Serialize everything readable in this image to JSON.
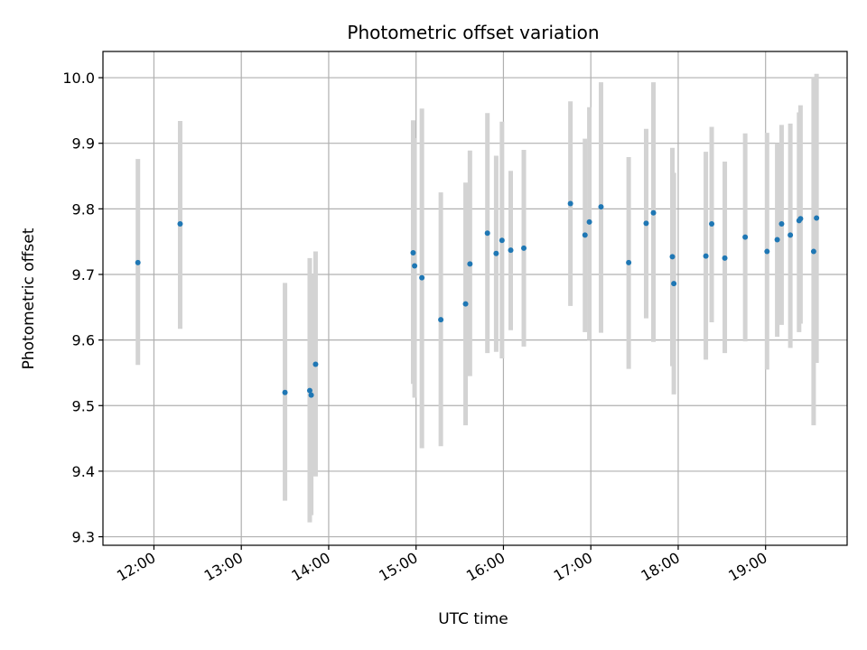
{
  "chart_data": {
    "type": "scatter",
    "title": "Photometric offset variation",
    "xlabel": "UTC time",
    "ylabel": "Photometric offset",
    "x_ticks": [
      "12:00",
      "13:00",
      "14:00",
      "15:00",
      "16:00",
      "17:00",
      "18:00",
      "19:00"
    ],
    "y_ticks": [
      "9.3",
      "9.4",
      "9.5",
      "9.6",
      "9.7",
      "9.8",
      "9.9",
      "10.0"
    ],
    "xlim": [
      "11:25",
      "19:56"
    ],
    "ylim": [
      9.287,
      10.04
    ],
    "grid": true,
    "colors": {
      "marker": "#1f77b4",
      "errorbar": "#d3d3d3",
      "grid": "#b0b0b0"
    },
    "points": [
      {
        "x": "11:49",
        "y": 9.718,
        "ylow": 9.562,
        "yhigh": 9.876
      },
      {
        "x": "12:18",
        "y": 9.777,
        "ylow": 9.617,
        "yhigh": 9.934
      },
      {
        "x": "13:30",
        "y": 9.52,
        "ylow": 9.355,
        "yhigh": 9.687
      },
      {
        "x": "13:47",
        "y": 9.523,
        "ylow": 9.322,
        "yhigh": 9.725
      },
      {
        "x": "13:48",
        "y": 9.516,
        "ylow": 9.333,
        "yhigh": 9.7
      },
      {
        "x": "13:51",
        "y": 9.563,
        "ylow": 9.392,
        "yhigh": 9.735
      },
      {
        "x": "14:58",
        "y": 9.733,
        "ylow": 9.533,
        "yhigh": 9.935
      },
      {
        "x": "14:59",
        "y": 9.713,
        "ylow": 9.512,
        "yhigh": 9.908
      },
      {
        "x": "15:04",
        "y": 9.695,
        "ylow": 9.435,
        "yhigh": 9.953
      },
      {
        "x": "15:17",
        "y": 9.631,
        "ylow": 9.438,
        "yhigh": 9.825
      },
      {
        "x": "15:34",
        "y": 9.655,
        "ylow": 9.47,
        "yhigh": 9.84
      },
      {
        "x": "15:37",
        "y": 9.716,
        "ylow": 9.545,
        "yhigh": 9.889
      },
      {
        "x": "15:49",
        "y": 9.763,
        "ylow": 9.58,
        "yhigh": 9.946
      },
      {
        "x": "15:55",
        "y": 9.732,
        "ylow": 9.582,
        "yhigh": 9.881
      },
      {
        "x": "15:59",
        "y": 9.752,
        "ylow": 9.572,
        "yhigh": 9.933
      },
      {
        "x": "16:05",
        "y": 9.737,
        "ylow": 9.615,
        "yhigh": 9.858
      },
      {
        "x": "16:14",
        "y": 9.74,
        "ylow": 9.59,
        "yhigh": 9.89
      },
      {
        "x": "16:46",
        "y": 9.808,
        "ylow": 9.652,
        "yhigh": 9.964
      },
      {
        "x": "16:56",
        "y": 9.76,
        "ylow": 9.612,
        "yhigh": 9.907
      },
      {
        "x": "16:59",
        "y": 9.78,
        "ylow": 9.6,
        "yhigh": 9.955
      },
      {
        "x": "17:07",
        "y": 9.803,
        "ylow": 9.611,
        "yhigh": 9.993
      },
      {
        "x": "17:26",
        "y": 9.718,
        "ylow": 9.556,
        "yhigh": 9.879
      },
      {
        "x": "17:38",
        "y": 9.778,
        "ylow": 9.633,
        "yhigh": 9.922
      },
      {
        "x": "17:43",
        "y": 9.794,
        "ylow": 9.597,
        "yhigh": 9.993
      },
      {
        "x": "17:56",
        "y": 9.727,
        "ylow": 9.56,
        "yhigh": 9.893
      },
      {
        "x": "17:57",
        "y": 9.686,
        "ylow": 9.517,
        "yhigh": 9.855
      },
      {
        "x": "18:19",
        "y": 9.728,
        "ylow": 9.57,
        "yhigh": 9.887
      },
      {
        "x": "18:23",
        "y": 9.777,
        "ylow": 9.627,
        "yhigh": 9.925
      },
      {
        "x": "18:32",
        "y": 9.725,
        "ylow": 9.58,
        "yhigh": 9.872
      },
      {
        "x": "18:46",
        "y": 9.757,
        "ylow": 9.598,
        "yhigh": 9.915
      },
      {
        "x": "19:01",
        "y": 9.735,
        "ylow": 9.555,
        "yhigh": 9.916
      },
      {
        "x": "19:08",
        "y": 9.753,
        "ylow": 9.605,
        "yhigh": 9.9
      },
      {
        "x": "19:11",
        "y": 9.777,
        "ylow": 9.623,
        "yhigh": 9.928
      },
      {
        "x": "19:17",
        "y": 9.76,
        "ylow": 9.588,
        "yhigh": 9.93
      },
      {
        "x": "19:23",
        "y": 9.782,
        "ylow": 9.612,
        "yhigh": 9.947
      },
      {
        "x": "19:24",
        "y": 9.785,
        "ylow": 9.625,
        "yhigh": 9.958
      },
      {
        "x": "19:33",
        "y": 9.735,
        "ylow": 9.47,
        "yhigh": 10.0
      },
      {
        "x": "19:35",
        "y": 9.786,
        "ylow": 9.565,
        "yhigh": 10.006
      }
    ]
  }
}
